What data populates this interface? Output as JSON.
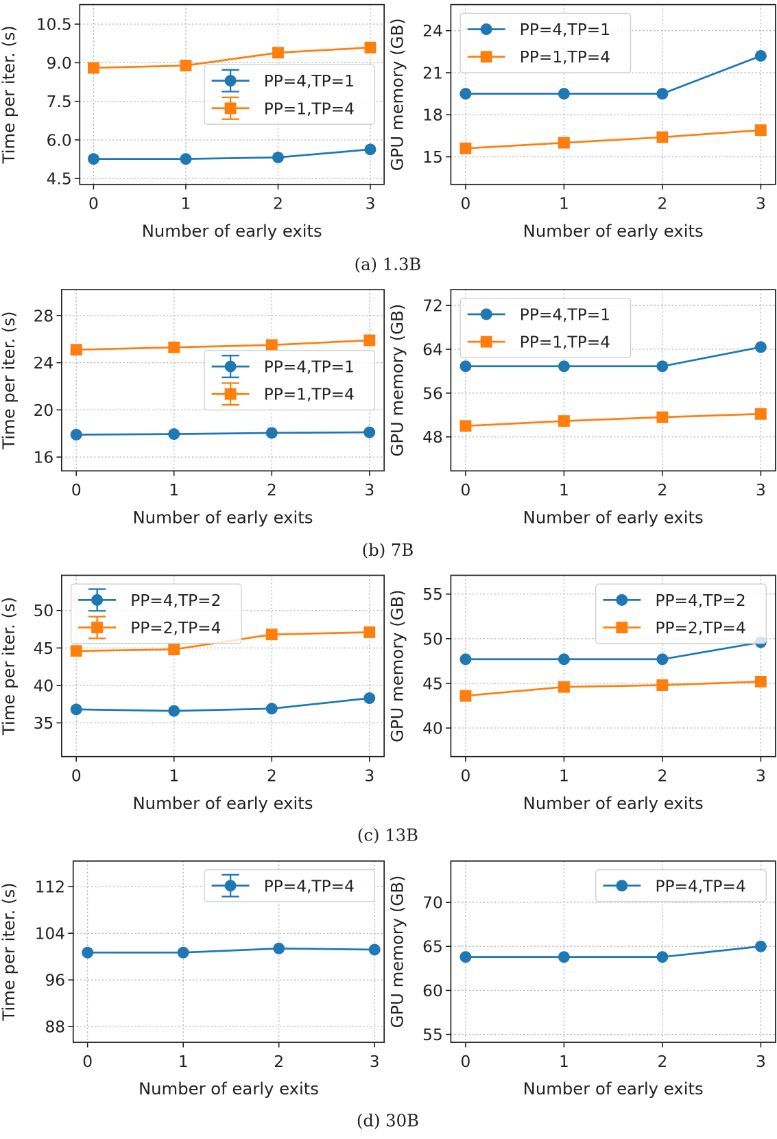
{
  "colors": {
    "blue": "#1f77b4",
    "orange": "#ff7f0e"
  },
  "captions": [
    "(a) 1.3B",
    "(b) 7B",
    "(c) 13B",
    "(d) 30B"
  ],
  "chart_data": [
    {
      "type": "line",
      "panel": "a-time",
      "xlabel": "Number of early exits",
      "ylabel": "Time per iter. (s)",
      "x": [
        0,
        1,
        2,
        3
      ],
      "xticks": [
        "0",
        "1",
        "2",
        "3"
      ],
      "xlim": [
        -0.15,
        3.15
      ],
      "ylim": [
        4.27,
        11.26
      ],
      "yticks": [
        "4.5",
        "6.0",
        "7.5",
        "9.0",
        "10.5"
      ],
      "grid": true,
      "legend": "center-right",
      "legend_style": "errorbar",
      "series": [
        {
          "name": "PP=4,TP=1",
          "color": "#1f77b4",
          "marker": "circle",
          "values": [
            5.26,
            5.26,
            5.32,
            5.63
          ]
        },
        {
          "name": "PP=1,TP=4",
          "color": "#ff7f0e",
          "marker": "square",
          "values": [
            8.8,
            8.89,
            9.39,
            9.59
          ]
        }
      ]
    },
    {
      "type": "line",
      "panel": "a-mem",
      "xlabel": "Number of early exits",
      "ylabel": "GPU memory (GB)",
      "x": [
        0,
        1,
        2,
        3
      ],
      "xticks": [
        "0",
        "1",
        "2",
        "3"
      ],
      "xlim": [
        -0.15,
        3.15
      ],
      "ylim": [
        13.03,
        25.86
      ],
      "yticks": [
        "15",
        "18",
        "21",
        "24"
      ],
      "grid": true,
      "legend": "upper-left",
      "legend_style": "line",
      "series": [
        {
          "name": "PP=4,TP=1",
          "color": "#1f77b4",
          "marker": "circle",
          "values": [
            19.5,
            19.5,
            19.5,
            22.2
          ]
        },
        {
          "name": "PP=1,TP=4",
          "color": "#ff7f0e",
          "marker": "square",
          "values": [
            15.6,
            16.0,
            16.4,
            16.9
          ]
        }
      ]
    },
    {
      "type": "line",
      "panel": "b-time",
      "xlabel": "Number of early exits",
      "ylabel": "Time per iter. (s)",
      "x": [
        0,
        1,
        2,
        3
      ],
      "xticks": [
        "0",
        "1",
        "2",
        "3"
      ],
      "xlim": [
        -0.15,
        3.15
      ],
      "ylim": [
        14.83,
        30.2
      ],
      "yticks": [
        "16",
        "20",
        "24",
        "28"
      ],
      "grid": true,
      "legend": "center-right",
      "legend_style": "errorbar",
      "series": [
        {
          "name": "PP=4,TP=1",
          "color": "#1f77b4",
          "marker": "circle",
          "values": [
            17.9,
            17.95,
            18.05,
            18.1
          ]
        },
        {
          "name": "PP=1,TP=4",
          "color": "#ff7f0e",
          "marker": "square",
          "values": [
            25.1,
            25.3,
            25.5,
            25.9
          ]
        }
      ]
    },
    {
      "type": "line",
      "panel": "b-mem",
      "xlabel": "Number of early exits",
      "ylabel": "GPU memory (GB)",
      "x": [
        0,
        1,
        2,
        3
      ],
      "xticks": [
        "0",
        "1",
        "2",
        "3"
      ],
      "xlim": [
        -0.15,
        3.15
      ],
      "ylim": [
        41.8,
        74.9
      ],
      "yticks": [
        "48",
        "56",
        "64",
        "72"
      ],
      "grid": true,
      "legend": "upper-left",
      "legend_style": "line",
      "series": [
        {
          "name": "PP=4,TP=1",
          "color": "#1f77b4",
          "marker": "circle",
          "values": [
            60.9,
            60.9,
            60.9,
            64.4
          ]
        },
        {
          "name": "PP=1,TP=4",
          "color": "#ff7f0e",
          "marker": "square",
          "values": [
            50.0,
            50.9,
            51.6,
            52.2
          ]
        }
      ]
    },
    {
      "type": "line",
      "panel": "c-time",
      "xlabel": "Number of early exits",
      "ylabel": "Time per iter. (s)",
      "x": [
        0,
        1,
        2,
        3
      ],
      "xticks": [
        "0",
        "1",
        "2",
        "3"
      ],
      "xlim": [
        -0.15,
        3.15
      ],
      "ylim": [
        30.5,
        54.7
      ],
      "yticks": [
        "35",
        "40",
        "45",
        "50"
      ],
      "grid": true,
      "legend": "upper-left",
      "legend_style": "errorbar",
      "series": [
        {
          "name": "PP=4,TP=2",
          "color": "#1f77b4",
          "marker": "circle",
          "values": [
            36.8,
            36.6,
            36.9,
            38.3
          ]
        },
        {
          "name": "PP=2,TP=4",
          "color": "#ff7f0e",
          "marker": "square",
          "values": [
            44.6,
            44.8,
            46.8,
            47.1
          ]
        }
      ]
    },
    {
      "type": "line",
      "panel": "c-mem",
      "xlabel": "Number of early exits",
      "ylabel": "GPU memory (GB)",
      "x": [
        0,
        1,
        2,
        3
      ],
      "xticks": [
        "0",
        "1",
        "2",
        "3"
      ],
      "xlim": [
        -0.15,
        3.15
      ],
      "ylim": [
        36.8,
        57.1
      ],
      "yticks": [
        "40",
        "45",
        "50",
        "55"
      ],
      "grid": true,
      "legend": "upper-right",
      "legend_style": "line",
      "series": [
        {
          "name": "PP=4,TP=2",
          "color": "#1f77b4",
          "marker": "circle",
          "values": [
            47.7,
            47.7,
            47.7,
            49.6
          ]
        },
        {
          "name": "PP=2,TP=4",
          "color": "#ff7f0e",
          "marker": "square",
          "values": [
            43.6,
            44.6,
            44.8,
            45.2
          ]
        }
      ]
    },
    {
      "type": "line",
      "panel": "d-time",
      "xlabel": "Number of early exits",
      "ylabel": "Time per iter. (s)",
      "x": [
        0,
        1,
        2,
        3
      ],
      "xticks": [
        "0",
        "1",
        "2",
        "3"
      ],
      "xlim": [
        -0.15,
        3.1
      ],
      "ylim": [
        85.3,
        116.4
      ],
      "yticks": [
        "88",
        "96",
        "104",
        "112"
      ],
      "grid": true,
      "legend": "upper-right",
      "legend_style": "errorbar",
      "series": [
        {
          "name": "PP=4,TP=4",
          "color": "#1f77b4",
          "marker": "circle",
          "values": [
            100.7,
            100.7,
            101.4,
            101.2
          ]
        }
      ]
    },
    {
      "type": "line",
      "panel": "d-mem",
      "xlabel": "Number of early exits",
      "ylabel": "GPU memory (GB)",
      "x": [
        0,
        1,
        2,
        3
      ],
      "xticks": [
        "0",
        "1",
        "2",
        "3"
      ],
      "xlim": [
        -0.15,
        3.15
      ],
      "ylim": [
        54.1,
        74.7
      ],
      "yticks": [
        "55",
        "60",
        "65",
        "70"
      ],
      "grid": true,
      "legend": "upper-right",
      "legend_style": "line",
      "series": [
        {
          "name": "PP=4,TP=4",
          "color": "#1f77b4",
          "marker": "circle",
          "values": [
            63.8,
            63.8,
            63.8,
            65.0
          ]
        }
      ]
    }
  ]
}
